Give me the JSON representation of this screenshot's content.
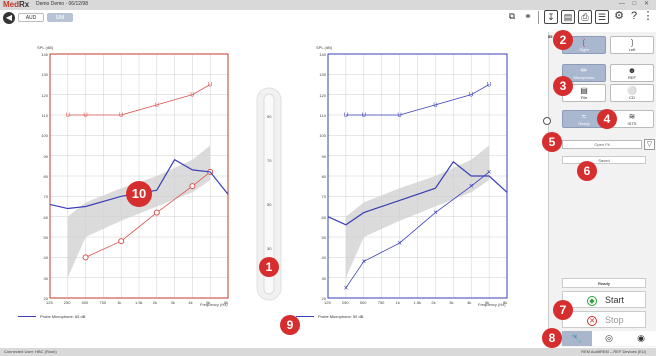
{
  "window": {
    "logo_red": "Med",
    "logo_rest": "Rx",
    "client_label": "Demo Demo · 06/12/98",
    "controls": "— □ ✕"
  },
  "toolbar": {
    "aud_label": "AUD",
    "sim_label": "SIM",
    "icons": [
      "window-icon",
      "link-icon",
      "export-icon",
      "save-icon",
      "print-icon",
      "report-icon",
      "settings-icon",
      "help-icon",
      "more-icon"
    ]
  },
  "chart_left": {
    "ylabel": "SPL (dB)",
    "yticks": [
      "140",
      "130",
      "120",
      "110",
      "100",
      "90",
      "80",
      "70",
      "60",
      "50",
      "40",
      "30",
      "20"
    ],
    "xticks": [
      "125",
      "250",
      "500",
      "750",
      "1k",
      "1.5k",
      "2k",
      "3k",
      "4k",
      "6k",
      "8k"
    ],
    "xlabel": "Frequency (Hz)",
    "legend": "Probe Microphone: 65 dB",
    "color": "#d9534f"
  },
  "chart_right": {
    "ylabel": "SPL (dB)",
    "yticks": [
      "140",
      "130",
      "120",
      "110",
      "100",
      "90",
      "80",
      "70",
      "60",
      "50",
      "40",
      "30",
      "20"
    ],
    "xticks": [
      "125",
      "250",
      "500",
      "750",
      "1k",
      "1.5k",
      "2k",
      "3k",
      "4k",
      "6k",
      "8k"
    ],
    "xlabel": "Frequency (Hz)",
    "legend": "Probe Microphone: 59 dB",
    "color": "#3b3fb5"
  },
  "meter": {
    "ticks": [
      "90",
      "70",
      "50",
      "30"
    ]
  },
  "chart_data": [
    {
      "type": "line",
      "title": "",
      "ylabel": "SPL (dB)",
      "xlabel": "Frequency (Hz)",
      "ylim": [
        20,
        140
      ],
      "x": [
        "125",
        "250",
        "500",
        "750",
        "1k",
        "1.5k",
        "2k",
        "3k",
        "4k",
        "6k",
        "8k"
      ],
      "series": [
        {
          "name": "UCL",
          "x": [
            "250",
            "500",
            "1k",
            "2k",
            "4k",
            "6k"
          ],
          "values": [
            110,
            110,
            110,
            115,
            120,
            125
          ]
        },
        {
          "name": "Threshold",
          "x": [
            "500",
            "1k",
            "2k",
            "4k",
            "6k"
          ],
          "values": [
            40,
            48,
            62,
            75,
            82
          ]
        },
        {
          "name": "Probe Microphone: 65 dB",
          "x": [
            "125",
            "250",
            "500",
            "1k",
            "2k",
            "3k",
            "4k",
            "6k",
            "8k"
          ],
          "values": [
            66,
            64,
            65,
            70,
            73,
            88,
            83,
            82,
            71
          ]
        }
      ],
      "target_range_x": [
        "250",
        "500",
        "1k",
        "2k",
        "4k",
        "6k"
      ],
      "target_range_min": [
        30,
        50,
        58,
        65,
        72,
        78
      ],
      "target_range_max": [
        60,
        67,
        74,
        80,
        88,
        95
      ]
    },
    {
      "type": "line",
      "title": "",
      "ylabel": "SPL (dB)",
      "xlabel": "Frequency (Hz)",
      "ylim": [
        20,
        140
      ],
      "x": [
        "125",
        "250",
        "500",
        "750",
        "1k",
        "1.5k",
        "2k",
        "3k",
        "4k",
        "6k",
        "8k"
      ],
      "series": [
        {
          "name": "UCL",
          "x": [
            "250",
            "500",
            "1k",
            "2k",
            "4k",
            "6k"
          ],
          "values": [
            110,
            110,
            110,
            115,
            120,
            125
          ]
        },
        {
          "name": "Threshold",
          "x": [
            "250",
            "500",
            "1k",
            "2k",
            "4k",
            "6k"
          ],
          "values": [
            25,
            38,
            47,
            62,
            75,
            82
          ]
        },
        {
          "name": "Probe Microphone: 59 dB",
          "x": [
            "125",
            "250",
            "500",
            "1k",
            "2k",
            "3k",
            "4k",
            "6k",
            "8k"
          ],
          "values": [
            60,
            56,
            62,
            68,
            74,
            87,
            80,
            80,
            72
          ]
        }
      ],
      "target_range_x": [
        "250",
        "500",
        "1k",
        "2k",
        "4k",
        "6k"
      ],
      "target_range_min": [
        30,
        50,
        58,
        65,
        72,
        78
      ],
      "target_range_max": [
        60,
        67,
        74,
        80,
        88,
        95
      ]
    }
  ],
  "panel": {
    "right_label": "Right",
    "left_label": "Left",
    "microphone_label": "Microphone",
    "ref_label": "REF",
    "file_label": "File",
    "cd_label": "CD",
    "speech_label": "Ready",
    "ists_label": "ISTS",
    "session_value": "Open Fit",
    "save_label": "Saved",
    "ready_label": "Ready",
    "start_label": "Start",
    "stop_label": "Stop"
  },
  "badges": [
    "1",
    "2",
    "3",
    "4",
    "5",
    "6",
    "7",
    "8",
    "9",
    "10"
  ],
  "status": {
    "left": "Connected   User: HBC (Rush)",
    "right": "REM  AuditREM – REF Devices (EU)"
  }
}
